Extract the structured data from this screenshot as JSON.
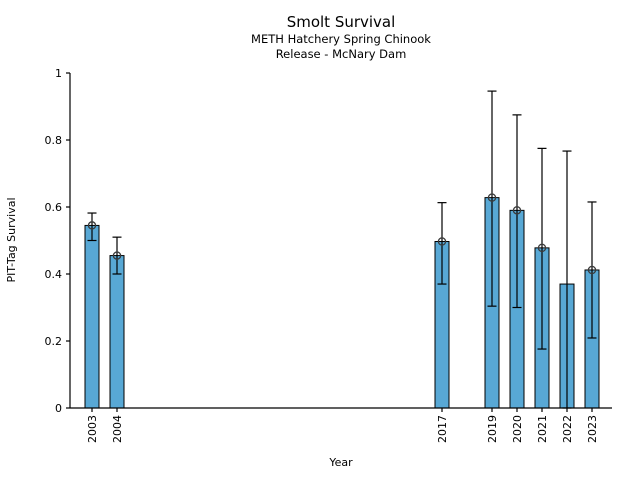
{
  "chart_data": {
    "type": "bar",
    "title": "Smolt Survival",
    "subtitle1": "METH Hatchery Spring Chinook",
    "subtitle2": "Release - McNary Dam",
    "xlabel": "Year",
    "ylabel": "PIT-Tag Survival",
    "ylim": [
      0,
      1
    ],
    "yticks": [
      0,
      0.2,
      0.4,
      0.6,
      0.8,
      1
    ],
    "ytick_labels": [
      "0",
      "0.2",
      "0.4",
      "0.6",
      "0.8",
      "1"
    ],
    "x_range": [
      2002.12,
      2023.8
    ],
    "grid": false,
    "legend": null,
    "bar_fill_color": "#58a8d5",
    "bar_edge_color": "#000000",
    "errorbar_color": "#000000",
    "marker_color": "#3a3a3a",
    "categories": [
      "2003",
      "2004",
      "2017",
      "2019",
      "2020",
      "2021",
      "2022",
      "2023"
    ],
    "values": [
      0.545,
      0.455,
      0.497,
      0.628,
      0.59,
      0.478,
      0.37,
      0.412
    ],
    "points": [
      {
        "year": 2003,
        "label": "2003",
        "value": 0.545,
        "ci_low": 0.5,
        "ci_high": 0.582,
        "marker": true
      },
      {
        "year": 2004,
        "label": "2004",
        "value": 0.455,
        "ci_low": 0.4,
        "ci_high": 0.51,
        "marker": true
      },
      {
        "year": 2017,
        "label": "2017",
        "value": 0.497,
        "ci_low": 0.37,
        "ci_high": 0.613,
        "marker": true
      },
      {
        "year": 2019,
        "label": "2019",
        "value": 0.628,
        "ci_low": 0.304,
        "ci_high": 0.946,
        "marker": true
      },
      {
        "year": 2020,
        "label": "2020",
        "value": 0.59,
        "ci_low": 0.3,
        "ci_high": 0.875,
        "marker": true
      },
      {
        "year": 2021,
        "label": "2021",
        "value": 0.478,
        "ci_low": 0.176,
        "ci_high": 0.775,
        "marker": true
      },
      {
        "year": 2022,
        "label": "2022",
        "value": 0.37,
        "ci_low": 0.0,
        "ci_high": 0.767,
        "marker": false
      },
      {
        "year": 2023,
        "label": "2023",
        "value": 0.412,
        "ci_low": 0.209,
        "ci_high": 0.615,
        "marker": true
      }
    ]
  }
}
